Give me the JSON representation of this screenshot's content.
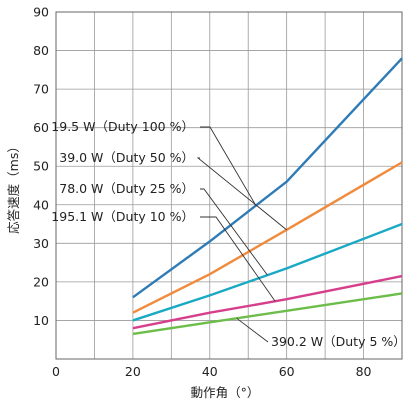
{
  "chart_data": {
    "type": "line",
    "xlabel": "動作角（°）",
    "ylabel": "応答速度（ms）",
    "xlim": [
      0,
      90
    ],
    "ylim": [
      0,
      90
    ],
    "xticks": [
      0,
      20,
      40,
      60,
      80
    ],
    "yticks": [
      0,
      10,
      20,
      30,
      40,
      50,
      60,
      70,
      80,
      90
    ],
    "grid": true,
    "series": [
      {
        "name": "19.5 W（Duty 100 %）",
        "color": "#2e7bb6",
        "x": [
          20,
          40,
          60,
          90
        ],
        "y": [
          16,
          30.5,
          46,
          78
        ]
      },
      {
        "name": "39.0 W（Duty 50 %）",
        "color": "#f08a3c",
        "x": [
          20,
          40,
          60,
          90
        ],
        "y": [
          12,
          22,
          33.5,
          51
        ]
      },
      {
        "name": "78.0 W（Duty 25 %）",
        "color": "#1aa9c4",
        "x": [
          20,
          40,
          60,
          90
        ],
        "y": [
          10,
          16.5,
          23.5,
          35
        ]
      },
      {
        "name": "195.1 W（Duty 10 %）",
        "color": "#d63f8c",
        "x": [
          20,
          40,
          60,
          90
        ],
        "y": [
          8,
          12,
          15.5,
          21.5
        ]
      },
      {
        "name": "390.2 W（Duty 5 %）",
        "color": "#6cbd4a",
        "x": [
          20,
          40,
          60,
          90
        ],
        "y": [
          6.5,
          9.5,
          12.5,
          17
        ]
      }
    ]
  }
}
